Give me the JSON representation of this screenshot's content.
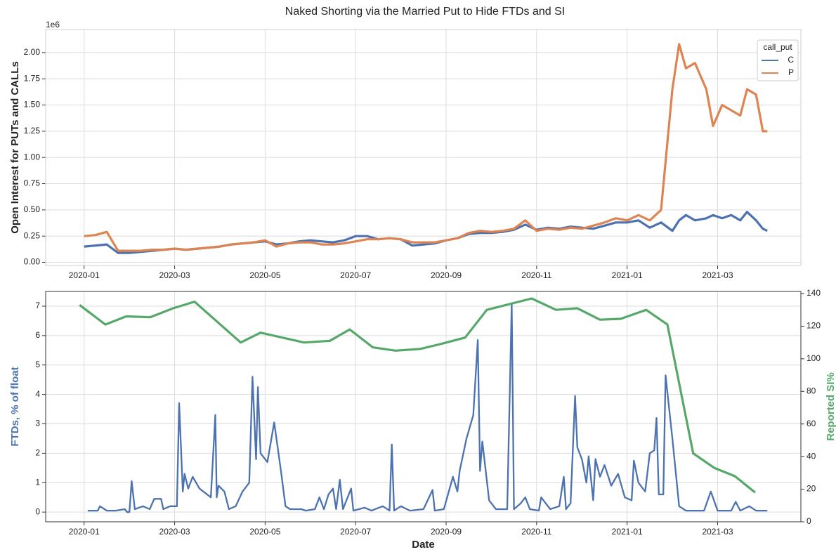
{
  "chart_data": [
    {
      "type": "line",
      "title": "Naked Shorting via the Married Put to Hide FTDs and SI",
      "ylabel": "Open Interest for PUTs and CALLs",
      "y_offset_label": "1e6",
      "legend_title": "call_put",
      "legend": "upper right",
      "grid": true,
      "xlim": [
        -0.85,
        15.84
      ],
      "xticks": [
        {
          "value": 0,
          "label": "2020-01"
        },
        {
          "value": 2,
          "label": "2020-03"
        },
        {
          "value": 4,
          "label": "2020-05"
        },
        {
          "value": 6,
          "label": "2020-07"
        },
        {
          "value": 8,
          "label": "2020-09"
        },
        {
          "value": 10,
          "label": "2020-11"
        },
        {
          "value": 12,
          "label": "2021-01"
        },
        {
          "value": 14,
          "label": "2021-03"
        }
      ],
      "ylim": [
        -0.03,
        2.22
      ],
      "yticks": [
        {
          "value": 0,
          "label": "0.00"
        },
        {
          "value": 0.25,
          "label": "0.25"
        },
        {
          "value": 0.5,
          "label": "0.50"
        },
        {
          "value": 0.75,
          "label": "0.75"
        },
        {
          "value": 1,
          "label": "1.00"
        },
        {
          "value": 1.25,
          "label": "1.25"
        },
        {
          "value": 1.5,
          "label": "1.50"
        },
        {
          "value": 1.75,
          "label": "1.75"
        },
        {
          "value": 2,
          "label": "2.00"
        }
      ],
      "x": [
        0,
        0.25,
        0.5,
        0.75,
        1,
        1.25,
        1.5,
        1.75,
        2,
        2.25,
        2.5,
        2.75,
        3,
        3.25,
        3.5,
        3.75,
        4,
        4.25,
        4.5,
        4.75,
        5,
        5.25,
        5.5,
        5.75,
        6,
        6.25,
        6.5,
        6.75,
        7,
        7.25,
        7.5,
        7.75,
        8,
        8.25,
        8.5,
        8.75,
        9,
        9.25,
        9.5,
        9.75,
        10,
        10.25,
        10.5,
        10.75,
        11,
        11.25,
        11.5,
        11.75,
        12,
        12.25,
        12.5,
        12.75,
        13,
        13.15,
        13.3,
        13.5,
        13.75,
        13.9,
        14.1,
        14.3,
        14.5,
        14.65,
        14.85,
        15,
        15.1
      ],
      "series": [
        {
          "name": "C",
          "color": "#4c72b0",
          "values": [
            0.15,
            0.16,
            0.17,
            0.09,
            0.09,
            0.1,
            0.11,
            0.12,
            0.13,
            0.12,
            0.13,
            0.14,
            0.15,
            0.17,
            0.18,
            0.19,
            0.2,
            0.17,
            0.18,
            0.2,
            0.21,
            0.2,
            0.19,
            0.21,
            0.25,
            0.25,
            0.22,
            0.23,
            0.22,
            0.16,
            0.17,
            0.18,
            0.21,
            0.23,
            0.27,
            0.28,
            0.28,
            0.29,
            0.31,
            0.36,
            0.31,
            0.33,
            0.32,
            0.34,
            0.33,
            0.32,
            0.35,
            0.38,
            0.38,
            0.4,
            0.33,
            0.38,
            0.3,
            0.4,
            0.45,
            0.4,
            0.42,
            0.45,
            0.42,
            0.45,
            0.4,
            0.48,
            0.4,
            0.32,
            0.3
          ]
        },
        {
          "name": "P",
          "color": "#dd8452",
          "values": [
            0.25,
            0.26,
            0.29,
            0.11,
            0.11,
            0.11,
            0.12,
            0.12,
            0.13,
            0.12,
            0.13,
            0.14,
            0.15,
            0.17,
            0.18,
            0.19,
            0.21,
            0.15,
            0.18,
            0.19,
            0.19,
            0.17,
            0.17,
            0.18,
            0.2,
            0.22,
            0.22,
            0.23,
            0.22,
            0.19,
            0.19,
            0.19,
            0.21,
            0.23,
            0.28,
            0.3,
            0.29,
            0.3,
            0.32,
            0.4,
            0.3,
            0.32,
            0.31,
            0.33,
            0.32,
            0.35,
            0.38,
            0.42,
            0.4,
            0.45,
            0.4,
            0.5,
            1.65,
            2.08,
            1.85,
            1.9,
            1.65,
            1.3,
            1.5,
            1.45,
            1.4,
            1.65,
            1.6,
            1.25,
            1.25
          ]
        }
      ]
    },
    {
      "type": "line",
      "xlabel": "Date",
      "ylabel": "FTDs, % of float",
      "y2label": "Reported SI%",
      "grid": true,
      "xlim": [
        -0.85,
        15.84
      ],
      "xticks": [
        {
          "value": 0,
          "label": "2020-01"
        },
        {
          "value": 2,
          "label": "2020-03"
        },
        {
          "value": 4,
          "label": "2020-05"
        },
        {
          "value": 6,
          "label": "2020-07"
        },
        {
          "value": 8,
          "label": "2020-09"
        },
        {
          "value": 10,
          "label": "2020-11"
        },
        {
          "value": 12,
          "label": "2021-01"
        },
        {
          "value": 14,
          "label": "2021-03"
        }
      ],
      "ylim": [
        -0.33,
        7.5
      ],
      "yticks": [
        0,
        1,
        2,
        3,
        4,
        5,
        6,
        7
      ],
      "y2lim": [
        0,
        141.3
      ],
      "y2ticks": [
        0,
        20,
        40,
        60,
        80,
        100,
        120,
        140
      ],
      "series": [
        {
          "name": "FTDs",
          "color": "#4c72b0",
          "axis": "y",
          "x": [
            0.08,
            0.2,
            0.3,
            0.35,
            0.5,
            0.7,
            0.9,
            0.95,
            1.0,
            1.05,
            1.12,
            1.3,
            1.45,
            1.55,
            1.7,
            1.75,
            1.9,
            2.05,
            2.1,
            2.18,
            2.22,
            2.3,
            2.4,
            2.55,
            2.8,
            2.9,
            2.93,
            2.97,
            3.1,
            3.2,
            3.35,
            3.5,
            3.65,
            3.72,
            3.8,
            3.84,
            3.9,
            4.05,
            4.2,
            4.35,
            4.45,
            4.55,
            4.8,
            4.9,
            5.1,
            5.2,
            5.3,
            5.4,
            5.5,
            5.57,
            5.65,
            5.72,
            5.9,
            5.95,
            6.2,
            6.35,
            6.6,
            6.75,
            6.8,
            6.85,
            7.0,
            7.2,
            7.5,
            7.7,
            7.75,
            7.95,
            8.15,
            8.25,
            8.3,
            8.45,
            8.6,
            8.7,
            8.75,
            8.8,
            8.95,
            9.1,
            9.35,
            9.45,
            9.5,
            9.65,
            9.75,
            9.85,
            10.05,
            10.1,
            10.3,
            10.5,
            10.6,
            10.65,
            10.75,
            10.85,
            10.9,
            11.0,
            11.1,
            11.15,
            11.25,
            11.3,
            11.4,
            11.5,
            11.65,
            11.8,
            11.95,
            12.1,
            12.15,
            12.25,
            12.4,
            12.5,
            12.6,
            12.65,
            12.7,
            12.8,
            12.85,
            13.0,
            13.15,
            13.3,
            13.5,
            13.7,
            13.85,
            14.0,
            14.3,
            14.4,
            14.5,
            14.7,
            14.85,
            15.1
          ],
          "values": [
            0.05,
            0.05,
            0.05,
            0.2,
            0.05,
            0.05,
            0.1,
            0.0,
            0.0,
            1.05,
            0.1,
            0.2,
            0.1,
            0.45,
            0.45,
            0.1,
            0.2,
            0.2,
            3.7,
            0.7,
            1.3,
            0.8,
            1.2,
            0.8,
            0.5,
            3.3,
            0.5,
            0.9,
            0.7,
            0.1,
            0.2,
            0.7,
            1.0,
            4.6,
            1.8,
            4.25,
            2.0,
            1.7,
            3.05,
            1.4,
            0.2,
            0.1,
            0.1,
            0.05,
            0.1,
            0.5,
            0.1,
            0.6,
            0.8,
            0.1,
            1.1,
            0.1,
            0.8,
            0.05,
            0.15,
            0.05,
            0.2,
            0.05,
            2.3,
            0.05,
            0.2,
            0.05,
            0.1,
            0.75,
            0.05,
            0.1,
            1.2,
            0.7,
            1.4,
            2.5,
            3.3,
            5.85,
            1.4,
            2.4,
            0.4,
            0.1,
            0.1,
            7.1,
            0.1,
            0.3,
            0.5,
            0.1,
            0.05,
            0.5,
            0.1,
            0.2,
            1.2,
            0.1,
            0.3,
            3.95,
            2.2,
            1.8,
            1.0,
            1.9,
            0.4,
            1.8,
            1.2,
            1.6,
            0.9,
            1.3,
            0.5,
            0.4,
            1.75,
            1.0,
            0.7,
            2.0,
            2.1,
            3.2,
            0.6,
            0.6,
            4.65,
            2.5,
            0.2,
            0.05,
            0.05,
            0.05,
            0.7,
            0.05,
            0.05,
            0.35,
            0.05,
            0.2,
            0.05,
            0.05
          ]
        },
        {
          "name": "SI",
          "color": "#55a868",
          "axis": "y2",
          "x": [
            -0.1,
            0.47,
            0.93,
            1.46,
            1.97,
            2.44,
            3.46,
            3.9,
            4.86,
            5.43,
            5.87,
            6.38,
            6.88,
            7.42,
            7.87,
            8.42,
            8.9,
            9.89,
            10.43,
            10.9,
            11.4,
            11.86,
            12.42,
            12.89,
            13.46,
            13.93,
            14.38,
            14.83
          ],
          "values": [
            133,
            121,
            126,
            125.5,
            131,
            135,
            110,
            116,
            110,
            111,
            118,
            107,
            105,
            106,
            109,
            113,
            130,
            137,
            130,
            131,
            124,
            124.5,
            130,
            121,
            42,
            33,
            28,
            18
          ]
        }
      ]
    }
  ]
}
